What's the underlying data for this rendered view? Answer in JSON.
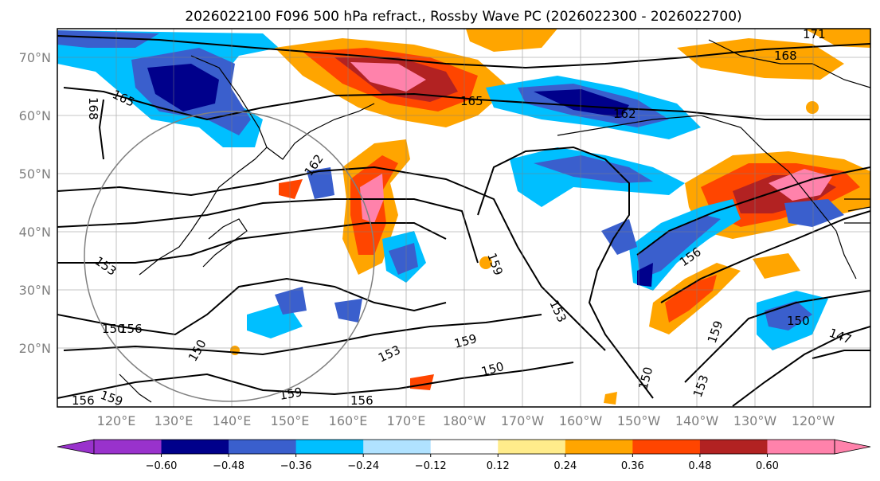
{
  "title": "2026022100 F096 500 hPa refract., Rossby Wave PC (2026022300 - 2026022700)",
  "lat_labels": [
    "70°N",
    "60°N",
    "50°N",
    "40°N",
    "30°N",
    "20°N"
  ],
  "lon_labels": [
    "120°E",
    "130°E",
    "140°E",
    "150°E",
    "160°E",
    "170°E",
    "180°W",
    "170°W",
    "160°W",
    "150°W",
    "140°W",
    "130°W",
    "120°W"
  ],
  "colorbar": {
    "colors": [
      "#9932cc",
      "#00008b",
      "#3a5fcd",
      "#00bfff",
      "#b0e2ff",
      "#ffffff",
      "#ffec8b",
      "#ffa500",
      "#ff4500",
      "#b22222",
      "#ff82ab",
      "#ff82ab"
    ],
    "tick_labels": [
      "−0.60",
      "−0.48",
      "−0.36",
      "−0.24",
      "−0.12",
      "0.12",
      "0.24",
      "0.36",
      "0.48",
      "0.60"
    ],
    "extend": "both"
  },
  "contour_labels": [
    "165",
    "168",
    "165",
    "162",
    "171",
    "168",
    "162",
    "159",
    "153",
    "156",
    "153",
    "150",
    "153",
    "159",
    "150",
    "159",
    "156",
    "150",
    "159",
    "150",
    "153",
    "150",
    "147",
    "156",
    "159",
    "153"
  ],
  "legend_colors": {
    "negative_strong": "#00008b",
    "negative": "#3a5fcd",
    "negative_weak": "#00bfff",
    "positive_weak": "#ffa500",
    "positive": "#ff4500",
    "positive_strong": "#b22222",
    "positive_max": "#ff82ab"
  }
}
